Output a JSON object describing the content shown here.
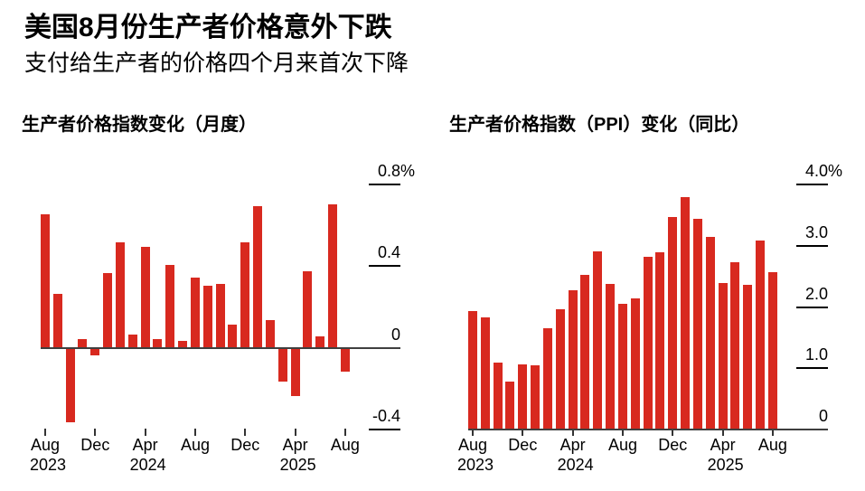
{
  "page": {
    "title": "美国8月份生产者价格意外下跌",
    "subtitle": "支付给生产者的价格四个月来首次下降"
  },
  "colors": {
    "bar": "#d8291f",
    "baseline": "#3f3f3f",
    "tick_line": "#000000",
    "x_tick_mark": "#333333",
    "text": "#000000",
    "background": "#ffffff"
  },
  "chart_data": [
    {
      "type": "bar",
      "title": "生产者价格指数变化（月度）",
      "unit": "%",
      "ylim": [
        -0.4,
        0.8
      ],
      "grid": false,
      "legend": null,
      "yticks": [
        {
          "value": 0.8,
          "label": "0.8",
          "suffix": "%"
        },
        {
          "value": 0.4,
          "label": "0.4",
          "suffix": ""
        },
        {
          "value": 0,
          "label": "0",
          "suffix": ""
        },
        {
          "value": -0.4,
          "label": "-0.4",
          "suffix": ""
        }
      ],
      "categories": [
        "Aug 2023",
        "Sep 2023",
        "Oct 2023",
        "Nov 2023",
        "Dec 2023",
        "Jan 2024",
        "Feb 2024",
        "Mar 2024",
        "Apr 2024",
        "May 2024",
        "Jun 2024",
        "Jul 2024",
        "Aug 2024",
        "Sep 2024",
        "Oct 2024",
        "Nov 2024",
        "Dec 2024",
        "Jan 2025",
        "Feb 2025",
        "Mar 2025",
        "Apr 2025",
        "May 2025",
        "Jun 2025",
        "Jul 2025",
        "Aug 2025"
      ],
      "values": [
        0.65,
        0.26,
        -0.37,
        0.04,
        -0.04,
        0.36,
        0.51,
        0.06,
        0.49,
        0.04,
        0.4,
        0.03,
        0.34,
        0.3,
        0.31,
        0.11,
        0.51,
        0.69,
        0.13,
        -0.17,
        -0.24,
        0.37,
        0.05,
        0.7,
        -0.12
      ],
      "xticks": [
        {
          "index": 0,
          "month": "Aug",
          "year": "2023"
        },
        {
          "index": 4,
          "month": "Dec",
          "year": ""
        },
        {
          "index": 8,
          "month": "Apr",
          "year": "2024"
        },
        {
          "index": 12,
          "month": "Aug",
          "year": ""
        },
        {
          "index": 16,
          "month": "Dec",
          "year": ""
        },
        {
          "index": 20,
          "month": "Apr",
          "year": "2025"
        },
        {
          "index": 24,
          "month": "Aug",
          "year": ""
        }
      ]
    },
    {
      "type": "bar",
      "title": "生产者价格指数（PPI）变化（同比）",
      "unit": "%",
      "ylim": [
        0,
        4.0
      ],
      "grid": false,
      "legend": null,
      "yticks": [
        {
          "value": 4.0,
          "label": "4.0",
          "suffix": "%"
        },
        {
          "value": 3.0,
          "label": "3.0",
          "suffix": ""
        },
        {
          "value": 2.0,
          "label": "2.0",
          "suffix": ""
        },
        {
          "value": 1.0,
          "label": "1.0",
          "suffix": ""
        },
        {
          "value": 0,
          "label": "0",
          "suffix": ""
        }
      ],
      "categories": [
        "Aug 2023",
        "Sep 2023",
        "Oct 2023",
        "Nov 2023",
        "Dec 2023",
        "Jan 2024",
        "Feb 2024",
        "Mar 2024",
        "Apr 2024",
        "May 2024",
        "Jun 2024",
        "Jul 2024",
        "Aug 2024",
        "Sep 2024",
        "Oct 2024",
        "Nov 2024",
        "Dec 2024",
        "Jan 2025",
        "Feb 2025",
        "Mar 2025",
        "Apr 2025",
        "May 2025",
        "Jun 2025",
        "Jul 2025",
        "Aug 2025"
      ],
      "values": [
        1.92,
        1.82,
        1.08,
        0.77,
        1.05,
        1.03,
        1.64,
        1.95,
        2.26,
        2.51,
        2.9,
        2.36,
        2.03,
        2.13,
        2.81,
        2.88,
        3.45,
        3.78,
        3.43,
        3.13,
        2.37,
        2.71,
        2.35,
        3.07,
        2.56
      ],
      "xticks": [
        {
          "index": 0,
          "month": "Aug",
          "year": "2023"
        },
        {
          "index": 4,
          "month": "Dec",
          "year": ""
        },
        {
          "index": 8,
          "month": "Apr",
          "year": "2024"
        },
        {
          "index": 12,
          "month": "Aug",
          "year": ""
        },
        {
          "index": 16,
          "month": "Dec",
          "year": ""
        },
        {
          "index": 20,
          "month": "Apr",
          "year": "2025"
        },
        {
          "index": 24,
          "month": "Aug",
          "year": ""
        }
      ]
    }
  ]
}
